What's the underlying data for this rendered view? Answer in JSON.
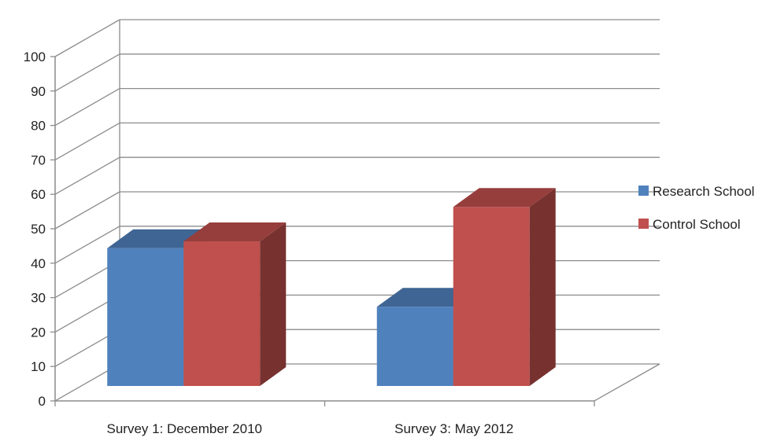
{
  "chart_data": {
    "type": "bar",
    "title": "",
    "xlabel": "",
    "ylabel": "",
    "ylim": [
      0,
      100
    ],
    "yticks": [
      0,
      10,
      20,
      30,
      40,
      50,
      60,
      70,
      80,
      90,
      100
    ],
    "grid": true,
    "legend_position": "right",
    "style": "3d-clustered-column",
    "categories": [
      "Survey 1: December 2010",
      "Survey 3: May 2012"
    ],
    "series": [
      {
        "name": "Research School",
        "values": [
          40,
          23
        ],
        "color": "#4F81BD"
      },
      {
        "name": "Control School",
        "values": [
          42,
          52
        ],
        "color": "#C0504D"
      }
    ]
  }
}
